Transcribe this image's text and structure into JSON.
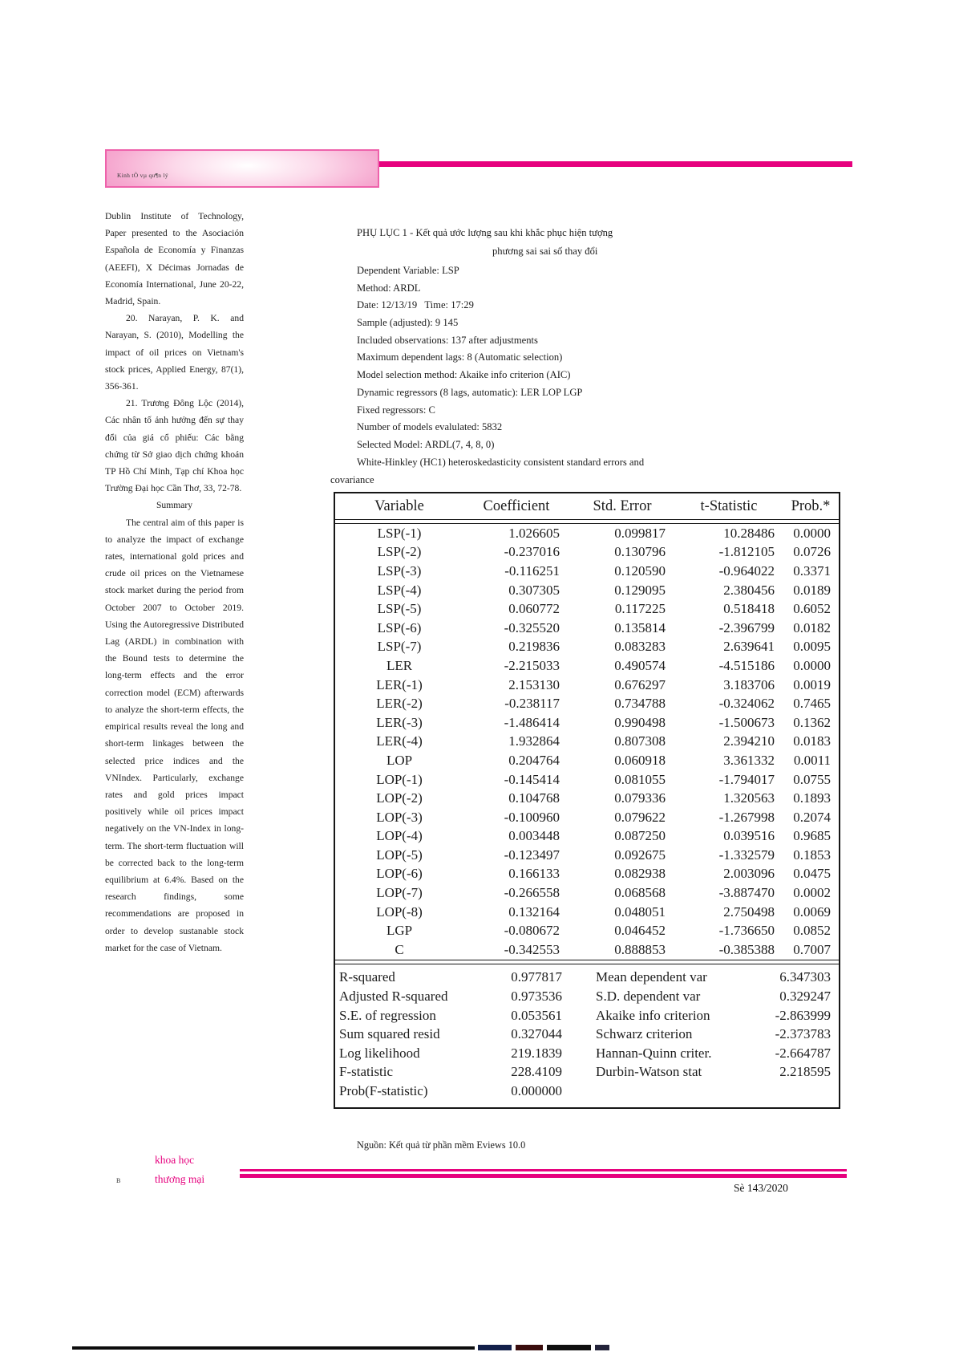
{
  "colors": {
    "magenta": "#e6017e",
    "logo_border_pink": "#ee62ab",
    "logo_fill_pink": "#f6a9d0"
  },
  "header": {
    "logo_text": "Kinh tÕ vµ qu¶n lý"
  },
  "left_column": {
    "continuation_paragraph": "Dublin Institute of Technology, Paper presented to the Asociación Española de Economía y Finanzas (AEEFI), X Décimas Jornadas de Economía International, June 20-22, Madrid, Spain.",
    "references": [
      {
        "text": "20. Narayan, P. K. and Narayan, S. (2010), Modelling the impact of oil prices on Vietnam's stock prices, Applied Energy, 87(1), 356-361."
      },
      {
        "text": "21. Trương Đông Lộc (2014), Các nhân tố ảnh hưởng đến sự thay đổi của giá cổ phiếu: Các bằng chứng từ Sở giao dịch chứng khoán TP Hồ Chí Minh, Tạp chí Khoa học Trường Đại học Cần Thơ, 33, 72-78."
      }
    ],
    "summary_heading": "Summary",
    "summary_paragraph": "The central aim of this paper is to analyze the impact of exchange rates, international gold prices and crude oil prices on the Vietnamese stock market during the period from October 2007 to October 2019. Using the Autoregressive Distributed Lag (ARDL) in combination with the Bound tests to determine the long-term effects and the error correction model (ECM) afterwards to analyze the short-term effects, the empirical results reveal the long and short-term linkages between the selected price indices and the VNIndex. Particularly, exchange rates and gold prices impact positively while oil prices impact negatively on the VN-Index in long-term. The short-term fluctuation will be corrected back to the long-term equilibrium at 6.4%. Based on the research findings, some recommendations are proposed in order to develop sustanable stock market for the case of Vietnam."
  },
  "main": {
    "title_line1": "PHỤ LỤC 1 - Kết quả ước lượng sau khi khắc phục hiện tượng",
    "title_line2": "phương sai sai số thay đổi",
    "meta_lines": [
      "Dependent Variable: LSP",
      "Method: ARDL",
      "Date: 12/13/19   Time: 17:29",
      "Sample (adjusted): 9 145",
      "Included observations: 137 after adjustments",
      "Maximum dependent lags: 8 (Automatic selection)",
      "Model selection method: Akaike info criterion (AIC)",
      "Dynamic regressors (8 lags, automatic): LER LOP LGP",
      "Fixed regressors: C",
      "Number of models evalulated: 5832",
      "Selected Model: ARDL(7, 4, 8, 0)",
      "White-Hinkley (HC1) heteroskedasticity consistent standard errors and"
    ],
    "meta_overflow": "covariance",
    "source_note": "Nguồn: Kết quả từ phần mềm Eviews 10.0"
  },
  "table": {
    "columns": [
      "Variable",
      "Coefficient",
      "Std. Error",
      "t-Statistic",
      "Prob.*"
    ],
    "rows": [
      [
        "LSP(-1)",
        "1.026605",
        "0.099817",
        "10.28486",
        "0.0000"
      ],
      [
        "LSP(-2)",
        "-0.237016",
        "0.130796",
        "-1.812105",
        "0.0726"
      ],
      [
        "LSP(-3)",
        "-0.116251",
        "0.120590",
        "-0.964022",
        "0.3371"
      ],
      [
        "LSP(-4)",
        "0.307305",
        "0.129095",
        "2.380456",
        "0.0189"
      ],
      [
        "LSP(-5)",
        "0.060772",
        "0.117225",
        "0.518418",
        "0.6052"
      ],
      [
        "LSP(-6)",
        "-0.325520",
        "0.135814",
        "-2.396799",
        "0.0182"
      ],
      [
        "LSP(-7)",
        "0.219836",
        "0.083283",
        "2.639641",
        "0.0095"
      ],
      [
        "LER",
        "-2.215033",
        "0.490574",
        "-4.515186",
        "0.0000"
      ],
      [
        "LER(-1)",
        "2.153130",
        "0.676297",
        "3.183706",
        "0.0019"
      ],
      [
        "LER(-2)",
        "-0.238117",
        "0.734788",
        "-0.324062",
        "0.7465"
      ],
      [
        "LER(-3)",
        "-1.486414",
        "0.990498",
        "-1.500673",
        "0.1362"
      ],
      [
        "LER(-4)",
        "1.932864",
        "0.807308",
        "2.394210",
        "0.0183"
      ],
      [
        "LOP",
        "0.204764",
        "0.060918",
        "3.361332",
        "0.0011"
      ],
      [
        "LOP(-1)",
        "-0.145414",
        "0.081055",
        "-1.794017",
        "0.0755"
      ],
      [
        "LOP(-2)",
        "0.104768",
        "0.079336",
        "1.320563",
        "0.1893"
      ],
      [
        "LOP(-3)",
        "-0.100960",
        "0.079622",
        "-1.267998",
        "0.2074"
      ],
      [
        "LOP(-4)",
        "0.003448",
        "0.087250",
        "0.039516",
        "0.9685"
      ],
      [
        "LOP(-5)",
        "-0.123497",
        "0.092675",
        "-1.332579",
        "0.1853"
      ],
      [
        "LOP(-6)",
        "0.166133",
        "0.082938",
        "2.003096",
        "0.0475"
      ],
      [
        "LOP(-7)",
        "-0.266558",
        "0.068568",
        "-3.887470",
        "0.0002"
      ],
      [
        "LOP(-8)",
        "0.132164",
        "0.048051",
        "2.750498",
        "0.0069"
      ],
      [
        "LGP",
        "-0.080672",
        "0.046452",
        "-1.736650",
        "0.0852"
      ],
      [
        "C",
        "-0.342553",
        "0.888853",
        "-0.385388",
        "0.7007"
      ]
    ],
    "stats_rows": [
      {
        "l": "R-squared",
        "v": "0.977817",
        "l2": "Mean dependent var",
        "v2": "6.347303"
      },
      {
        "l": "Adjusted R-squared",
        "v": "0.973536",
        "l2": "S.D. dependent var",
        "v2": "0.329247"
      },
      {
        "l": "S.E. of regression",
        "v": "0.053561",
        "l2": "Akaike info criterion",
        "v2": "-2.863999"
      },
      {
        "l": "Sum squared resid",
        "v": "0.327044",
        "l2": "Schwarz criterion",
        "v2": "-2.373783"
      },
      {
        "l": "Log likelihood",
        "v": "219.1839",
        "l2": "Hannan-Quinn criter.",
        "v2": "-2.664787"
      },
      {
        "l": "F-statistic",
        "v": "228.4109",
        "l2": "Durbin-Watson stat",
        "v2": "2.218595"
      },
      {
        "l": "Prob(F-statistic)",
        "v": "0.000000",
        "l2": "",
        "v2": ""
      }
    ]
  },
  "footer": {
    "journal_line1": "khoa học",
    "journal_line2": "thương mại",
    "page_mark": "B",
    "issue_label": "Sè 143/2020"
  }
}
